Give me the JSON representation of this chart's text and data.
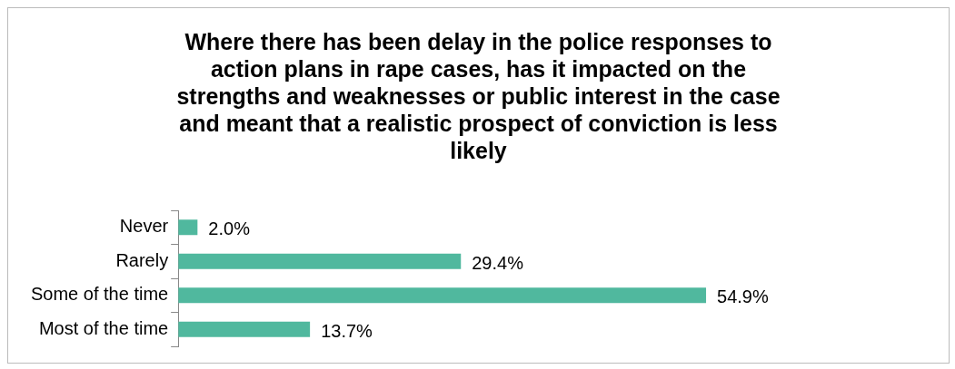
{
  "chart_data": {
    "type": "bar",
    "orientation": "horizontal",
    "title": "Where there has been delay in the police responses to action plans in rape cases, has it impacted on the strengths and weaknesses or public interest in the case and meant that a realistic prospect of conviction is less likely",
    "categories": [
      "Never",
      "Rarely",
      "Some of the time",
      "Most of the time"
    ],
    "values": [
      2.0,
      29.4,
      54.9,
      13.7
    ],
    "value_labels": [
      "2.0%",
      "29.4%",
      "54.9%",
      "13.7%"
    ],
    "color": "#50b89e"
  }
}
